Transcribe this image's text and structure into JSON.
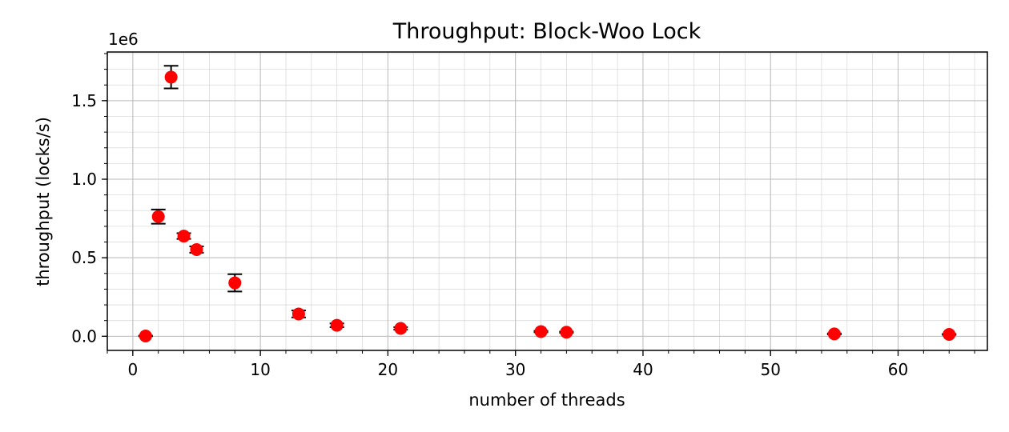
{
  "chart_data": {
    "type": "scatter",
    "title": "Throughput: Block-Woo Lock",
    "xlabel": "number of threads",
    "ylabel": "throughput (locks/s)",
    "y_multiplier_label": "1e6",
    "xlim": [
      -2,
      67
    ],
    "ylim": [
      -90000,
      1810000
    ],
    "x_ticks": [
      0,
      10,
      20,
      30,
      40,
      50,
      60
    ],
    "x_tick_labels": [
      "0",
      "10",
      "20",
      "30",
      "40",
      "50",
      "60"
    ],
    "y_ticks": [
      0,
      500000,
      1000000,
      1500000
    ],
    "y_tick_labels": [
      "0.0",
      "0.5",
      "1.0",
      "1.5"
    ],
    "grid": true,
    "marker_color": "#ff0000",
    "errorbar_color": "#000000",
    "points": [
      {
        "x": 1,
        "y": 2000,
        "err": 2000
      },
      {
        "x": 2,
        "y": 762000,
        "err": 45000
      },
      {
        "x": 3,
        "y": 1650000,
        "err": 72000
      },
      {
        "x": 4,
        "y": 638000,
        "err": 18000
      },
      {
        "x": 5,
        "y": 552000,
        "err": 20000
      },
      {
        "x": 8,
        "y": 340000,
        "err": 55000
      },
      {
        "x": 13,
        "y": 142000,
        "err": 22000
      },
      {
        "x": 16,
        "y": 70000,
        "err": 12000
      },
      {
        "x": 21,
        "y": 50000,
        "err": 8000
      },
      {
        "x": 32,
        "y": 30000,
        "err": 5000
      },
      {
        "x": 34,
        "y": 26000,
        "err": 4000
      },
      {
        "x": 55,
        "y": 15000,
        "err": 3000
      },
      {
        "x": 64,
        "y": 12000,
        "err": 2500
      }
    ]
  }
}
